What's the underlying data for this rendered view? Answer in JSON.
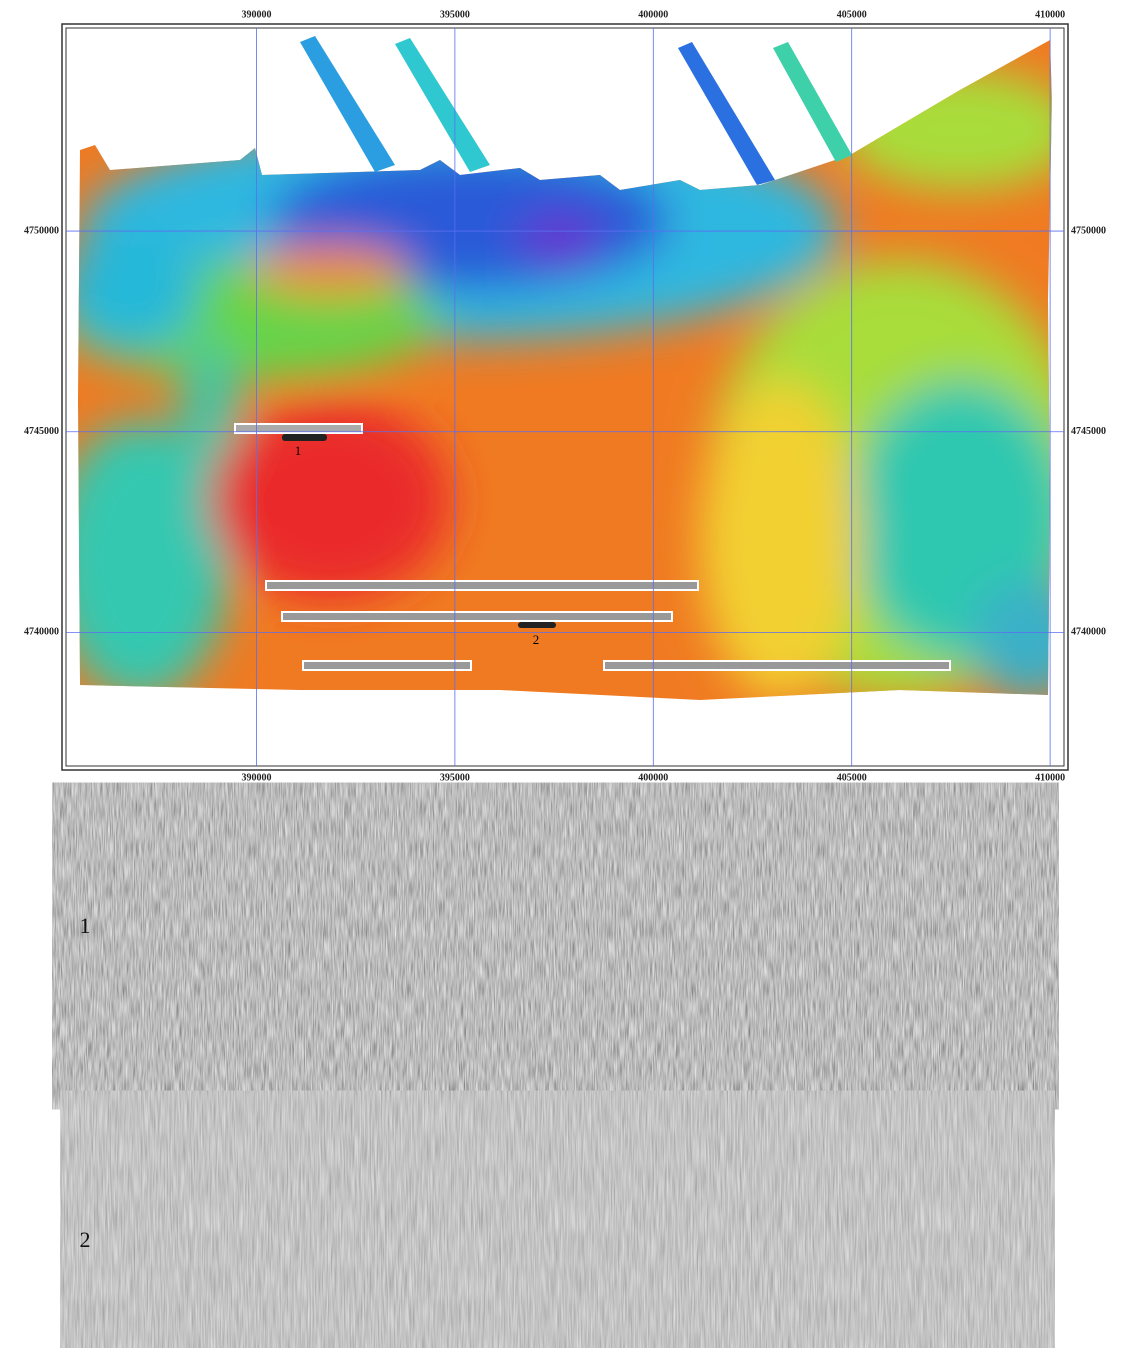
{
  "map": {
    "xlim": [
      385200,
      410350
    ],
    "ylim": [
      4736670,
      4755060
    ],
    "xticks": [
      390000,
      395000,
      400000,
      405000,
      410000
    ],
    "yticks": [
      4740000,
      4745000,
      4750000
    ],
    "track_labels": [
      "1",
      "2"
    ]
  },
  "panels": [
    {
      "label": "1"
    },
    {
      "label": "2"
    }
  ]
}
